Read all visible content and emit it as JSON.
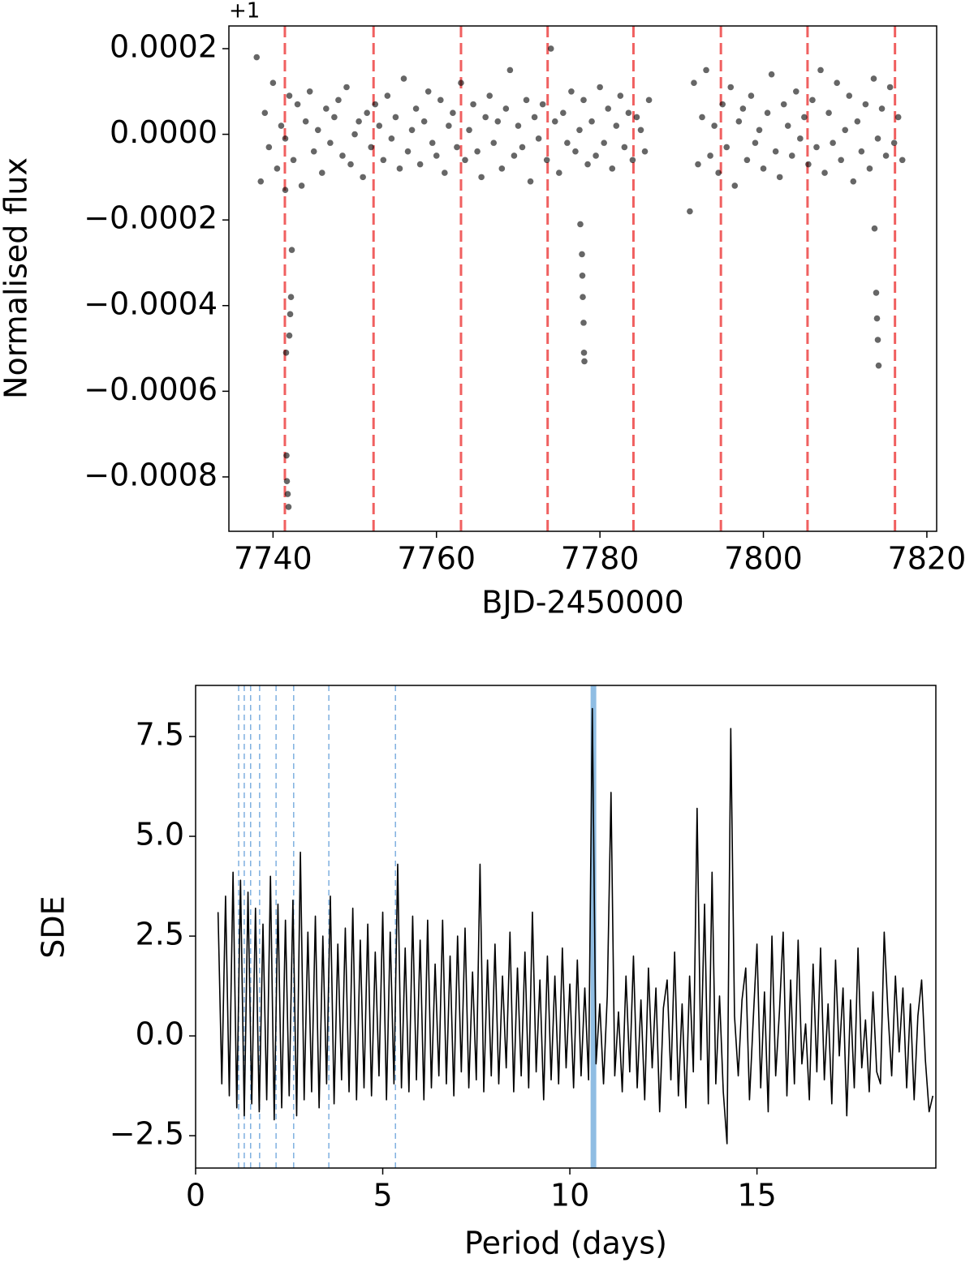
{
  "chart_data": [
    {
      "type": "scatter",
      "xlabel": "BJD-2450000",
      "ylabel": "Normalised flux",
      "offset_text": "+1",
      "color": "#000000",
      "xlim": [
        7734.6,
        7821.2
      ],
      "ylim": [
        -0.000927,
        0.000253
      ],
      "xticks": [
        7740,
        7760,
        7780,
        7800,
        7820
      ],
      "yticks": [
        {
          "value": 0.0002,
          "label": "0.0002"
        },
        {
          "value": 0,
          "label": "0.0000"
        },
        {
          "value": -0.0002,
          "label": "−0.0002"
        },
        {
          "value": -0.0004,
          "label": "−0.0004"
        },
        {
          "value": -0.0006,
          "label": "−0.0006"
        },
        {
          "value": -0.0008,
          "label": "−0.0008"
        }
      ],
      "vlines": {
        "color": "#f06060",
        "style": "dashed",
        "x": [
          7741.45,
          7752.3,
          7763.0,
          7773.6,
          7784.1,
          7794.8,
          7805.4,
          7816.1
        ]
      },
      "x": [
        7738.0,
        7738.5,
        7739.0,
        7739.5,
        7740.0,
        7740.5,
        7741.0,
        7741.5,
        7742.0,
        7742.5,
        7743.0,
        7743.5,
        7744.0,
        7744.5,
        7745.0,
        7745.5,
        7746.0,
        7746.5,
        7747.0,
        7747.5,
        7748.0,
        7748.5,
        7749.0,
        7749.5,
        7750.0,
        7750.5,
        7751.0,
        7751.5,
        7752.0,
        7752.5,
        7753.0,
        7753.5,
        7754.0,
        7754.5,
        7755.0,
        7755.5,
        7756.0,
        7756.5,
        7757.0,
        7757.5,
        7758.0,
        7758.5,
        7759.0,
        7759.5,
        7760.0,
        7760.5,
        7761.0,
        7761.5,
        7762.0,
        7762.5,
        7763.0,
        7763.5,
        7764.0,
        7764.5,
        7765.0,
        7765.5,
        7766.0,
        7766.5,
        7767.0,
        7767.5,
        7768.0,
        7768.5,
        7769.0,
        7769.5,
        7770.0,
        7770.5,
        7771.0,
        7771.5,
        7772.0,
        7772.5,
        7773.0,
        7773.5,
        7774.0,
        7774.5,
        7775.0,
        7775.5,
        7776.0,
        7776.5,
        7777.0,
        7777.5,
        7778.0,
        7778.5,
        7779.0,
        7779.5,
        7780.0,
        7780.5,
        7781.0,
        7781.5,
        7782.0,
        7782.5,
        7783.0,
        7783.5,
        7784.0,
        7784.5,
        7785.0,
        7785.5,
        7786.0,
        7791.0,
        7791.5,
        7792.0,
        7792.5,
        7793.0,
        7793.5,
        7794.0,
        7794.5,
        7795.0,
        7795.5,
        7796.0,
        7796.5,
        7797.0,
        7797.5,
        7798.0,
        7798.5,
        7799.0,
        7799.5,
        7800.0,
        7800.5,
        7801.0,
        7801.5,
        7802.0,
        7802.5,
        7803.0,
        7803.5,
        7804.0,
        7804.5,
        7805.0,
        7805.5,
        7806.0,
        7806.5,
        7807.0,
        7807.5,
        7808.0,
        7808.5,
        7809.0,
        7809.5,
        7810.0,
        7810.5,
        7811.0,
        7811.5,
        7812.0,
        7812.5,
        7813.0,
        7813.5,
        7814.0,
        7814.5,
        7815.0,
        7815.5,
        7816.0,
        7816.5,
        7817.0,
        7741.5,
        7741.6,
        7741.65,
        7741.7,
        7741.8,
        7741.9,
        7742.0,
        7742.1,
        7742.2,
        7742.3,
        7777.6,
        7777.8,
        7777.85,
        7777.9,
        7778.0,
        7778.05,
        7778.1,
        7813.6,
        7813.8,
        7813.9,
        7814.0,
        7814.1
      ],
      "y": [
        0.00018,
        -0.00011,
        5e-05,
        -3e-05,
        0.00012,
        -8e-05,
        2e-05,
        -1e-05,
        9e-05,
        -6e-05,
        7e-05,
        -0.00012,
        3e-05,
        0.0001,
        -4e-05,
        1e-05,
        -9e-05,
        6e-05,
        -2e-05,
        4e-05,
        8e-05,
        -5e-05,
        0.00011,
        -7e-05,
        0,
        3e-05,
        -0.0001,
        5e-05,
        -3e-05,
        7e-05,
        2e-05,
        -6e-05,
        9e-05,
        -1e-05,
        4e-05,
        -8e-05,
        0.00013,
        -4e-05,
        1e-05,
        6e-05,
        -7e-05,
        3e-05,
        0.0001,
        -2e-05,
        -5e-05,
        8e-05,
        -9e-05,
        2e-05,
        5e-05,
        -3e-05,
        0.00012,
        -6e-05,
        1e-05,
        7e-05,
        -4e-05,
        -0.0001,
        4e-05,
        9e-05,
        -2e-05,
        3e-05,
        -8e-05,
        6e-05,
        0.00015,
        -5e-05,
        2e-05,
        -3e-05,
        8e-05,
        -0.00011,
        4e-05,
        -1e-05,
        7e-05,
        -6e-05,
        0.0002,
        3e-05,
        -9e-05,
        5e-05,
        -2e-05,
        0.0001,
        -4e-05,
        1e-05,
        8e-05,
        -7e-05,
        3e-05,
        -5e-05,
        0.00011,
        -2e-05,
        6e-05,
        -8e-05,
        2e-05,
        9e-05,
        -3e-05,
        5e-05,
        -6e-05,
        4e-05,
        1e-05,
        -4e-05,
        8e-05,
        -0.00018,
        0.00012,
        -7e-05,
        4e-05,
        0.00015,
        -5e-05,
        2e-05,
        -9e-05,
        7e-05,
        -3e-05,
        0.00011,
        -0.00012,
        3e-05,
        6e-05,
        -6e-05,
        9e-05,
        -2e-05,
        1e-05,
        -8e-05,
        5e-05,
        0.00014,
        -4e-05,
        -0.0001,
        7e-05,
        2e-05,
        -5e-05,
        0.0001,
        -1e-05,
        4e-05,
        -7e-05,
        8e-05,
        -3e-05,
        0.00015,
        -9e-05,
        5e-05,
        -2e-05,
        0.00012,
        -6e-05,
        1e-05,
        9e-05,
        -0.00011,
        3e-05,
        -4e-05,
        7e-05,
        -8e-05,
        0.00013,
        -1e-05,
        6e-05,
        -5e-05,
        0.00011,
        -2e-05,
        4e-05,
        -6e-05,
        -0.00013,
        -0.00051,
        -0.00075,
        -0.00081,
        -0.00084,
        -0.00087,
        -0.00047,
        -0.00042,
        -0.00038,
        -0.00027,
        -0.00021,
        -0.00028,
        -0.00033,
        -0.00038,
        -0.00044,
        -0.00051,
        -0.00053,
        -0.00022,
        -0.00037,
        -0.00043,
        -0.00048,
        -0.00054
      ]
    },
    {
      "type": "line",
      "xlabel": "Period (days)",
      "ylabel": "SDE",
      "color": "#000000",
      "xlim": [
        0,
        19.78
      ],
      "ylim": [
        -3.31,
        8.78
      ],
      "xticks": [
        0,
        5,
        10,
        15
      ],
      "yticks": [
        {
          "value": 7.5,
          "label": "7.5"
        },
        {
          "value": 5,
          "label": "5.0"
        },
        {
          "value": 2.5,
          "label": "2.5"
        },
        {
          "value": 0,
          "label": "0.0"
        },
        {
          "value": -2.5,
          "label": "−2.5"
        }
      ],
      "vlines": {
        "color": "#7fb0e0",
        "style": "dashed",
        "x": [
          1.15,
          1.3,
          1.47,
          1.71,
          2.15,
          2.62,
          3.56,
          5.34
        ]
      },
      "highlight": {
        "color": "#8fbde3",
        "x": 10.63
      },
      "x": [
        0.6,
        0.7,
        0.8,
        0.9,
        1.0,
        1.1,
        1.2,
        1.3,
        1.4,
        1.5,
        1.6,
        1.7,
        1.8,
        1.9,
        2.0,
        2.1,
        2.2,
        2.3,
        2.4,
        2.5,
        2.6,
        2.7,
        2.8,
        2.9,
        3.0,
        3.1,
        3.2,
        3.3,
        3.4,
        3.5,
        3.6,
        3.7,
        3.8,
        3.9,
        4.0,
        4.1,
        4.2,
        4.3,
        4.4,
        4.5,
        4.6,
        4.7,
        4.8,
        4.9,
        5.0,
        5.1,
        5.2,
        5.3,
        5.4,
        5.5,
        5.6,
        5.7,
        5.8,
        5.9,
        6.0,
        6.1,
        6.2,
        6.3,
        6.4,
        6.5,
        6.6,
        6.7,
        6.8,
        6.9,
        7.0,
        7.1,
        7.2,
        7.3,
        7.4,
        7.5,
        7.6,
        7.7,
        7.8,
        7.9,
        8.0,
        8.1,
        8.2,
        8.3,
        8.4,
        8.5,
        8.6,
        8.7,
        8.8,
        8.9,
        9.0,
        9.1,
        9.2,
        9.3,
        9.4,
        9.5,
        9.6,
        9.7,
        9.8,
        9.9,
        10.0,
        10.1,
        10.2,
        10.3,
        10.4,
        10.5,
        10.6,
        10.7,
        10.8,
        10.9,
        11.0,
        11.1,
        11.2,
        11.3,
        11.4,
        11.5,
        11.6,
        11.7,
        11.8,
        11.9,
        12.0,
        12.1,
        12.2,
        12.3,
        12.4,
        12.5,
        12.6,
        12.7,
        12.8,
        12.9,
        13.0,
        13.1,
        13.2,
        13.3,
        13.4,
        13.5,
        13.6,
        13.7,
        13.8,
        13.9,
        14.0,
        14.1,
        14.2,
        14.3,
        14.4,
        14.5,
        14.6,
        14.7,
        14.8,
        14.9,
        15.0,
        15.1,
        15.2,
        15.3,
        15.4,
        15.5,
        15.6,
        15.7,
        15.8,
        15.9,
        16.0,
        16.1,
        16.2,
        16.3,
        16.4,
        16.5,
        16.6,
        16.7,
        16.8,
        16.9,
        17.0,
        17.1,
        17.2,
        17.3,
        17.4,
        17.5,
        17.6,
        17.7,
        17.8,
        17.9,
        18.0,
        18.1,
        18.2,
        18.3,
        18.4,
        18.5,
        18.6,
        18.7,
        18.8,
        18.9,
        19.0,
        19.1,
        19.2,
        19.3,
        19.4,
        19.5,
        19.6,
        19.7
      ],
      "values": [
        3.1,
        -1.2,
        3.5,
        -1.5,
        4.1,
        -1.8,
        3.9,
        -2.0,
        3.6,
        -1.7,
        3.2,
        -1.9,
        2.8,
        -1.6,
        4.0,
        -2.1,
        3.3,
        -1.8,
        2.9,
        -1.5,
        3.4,
        -2.0,
        4.6,
        -1.6,
        2.6,
        -1.4,
        3.0,
        -1.8,
        2.5,
        -1.2,
        3.5,
        -1.7,
        2.3,
        -1.1,
        2.7,
        -1.4,
        3.2,
        -1.6,
        2.4,
        -1.3,
        2.8,
        -1.5,
        2.1,
        -1.0,
        3.1,
        -1.6,
        2.6,
        -1.2,
        4.3,
        -1.3,
        2.2,
        -1.4,
        3.0,
        -1.1,
        2.4,
        -1.6,
        2.9,
        -1.3,
        1.8,
        -1.0,
        2.9,
        -1.2,
        2.0,
        -1.5,
        2.5,
        -0.9,
        2.7,
        -1.3,
        1.6,
        -1.1,
        4.3,
        -1.4,
        1.9,
        -1.0,
        2.3,
        -1.2,
        1.5,
        -0.8,
        2.6,
        -1.4,
        1.7,
        -1.0,
        2.1,
        -1.3,
        3.1,
        -0.9,
        1.4,
        -1.6,
        2.0,
        -1.1,
        1.5,
        -1.2,
        2.2,
        -0.8,
        1.3,
        -1.3,
        1.9,
        -1.0,
        1.2,
        -1.1,
        8.2,
        -0.7,
        0.8,
        -1.2,
        1.0,
        6.1,
        -1.0,
        0.6,
        -1.4,
        1.5,
        -0.9,
        2.0,
        -1.3,
        0.9,
        -1.6,
        1.7,
        -0.8,
        1.2,
        -1.9,
        0.7,
        1.4,
        -1.1,
        2.1,
        -1.5,
        0.8,
        -1.8,
        1.5,
        -0.9,
        5.7,
        -0.6,
        3.3,
        -1.7,
        4.1,
        -1.2,
        1.0,
        -1.4,
        -2.7,
        7.7,
        0.5,
        -1.0,
        0.9,
        1.7,
        -1.6,
        0.4,
        2.3,
        -1.3,
        1.1,
        -1.9,
        2.5,
        -1.0,
        0.6,
        2.6,
        -1.5,
        1.4,
        -1.2,
        2.4,
        -0.7,
        0.3,
        -1.6,
        1.8,
        -0.9,
        2.2,
        -1.1,
        0.8,
        -1.7,
        1.9,
        -0.5,
        1.2,
        -2.0,
        0.9,
        -1.3,
        2.2,
        -0.8,
        0.4,
        -1.4,
        1.1,
        -0.9,
        -1.2,
        2.6,
        0.6,
        -1.0,
        1.5,
        -0.4,
        1.2,
        -1.3,
        0.8,
        -1.6,
        0.5,
        1.4,
        -0.6,
        -1.9,
        -1.5
      ]
    }
  ]
}
